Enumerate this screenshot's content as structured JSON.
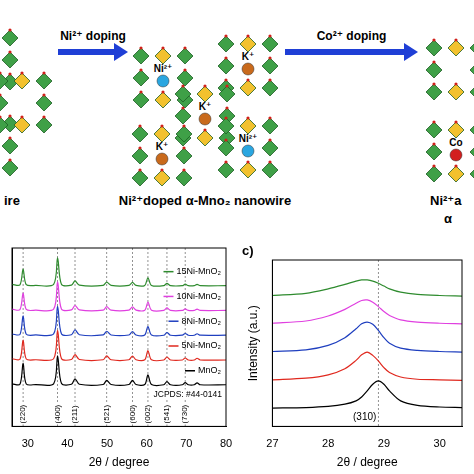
{
  "diagram": {
    "arrows": [
      {
        "label": "Ni²⁺ doping"
      },
      {
        "label": "Co²⁺ doping"
      }
    ],
    "structures": [
      {
        "caption": [
          "ire"
        ],
        "ions": []
      },
      {
        "caption": [
          "Ni²⁺doped α-Mno₂ nanowire"
        ],
        "ions": [
          {
            "label": "Ni²⁺",
            "color": "#2aa6e0"
          },
          {
            "label": "K⁺",
            "color": "#c96a1c"
          },
          {
            "label": "K⁺",
            "color": "#c96a1c"
          },
          {
            "label": "K⁺",
            "color": "#c96a1c"
          },
          {
            "label": "Ni²⁺",
            "color": "#2aa6e0"
          }
        ]
      },
      {
        "caption": [
          "Ni²⁺a",
          "α"
        ],
        "ions": [
          {
            "label": "Co",
            "color": "#d21f1f"
          }
        ]
      }
    ]
  },
  "chart_data": [
    {
      "type": "line",
      "x_label": "2θ / degree",
      "x": [
        26,
        28,
        28.8,
        29.6,
        32,
        36.5,
        37.5,
        38.5,
        41,
        41.9,
        43,
        49,
        49.9,
        51,
        55.5,
        56.4,
        57.3,
        59.5,
        60.3,
        61.2,
        64.3,
        65.1,
        66,
        69,
        69.7,
        70.5,
        72,
        72.7,
        73.5,
        80
      ],
      "xlim": [
        26,
        80
      ],
      "xticks": [
        30,
        40,
        50,
        60,
        70,
        80
      ],
      "ylim": [
        -16,
        56
      ],
      "tick_labels": "x",
      "grid": false,
      "legend": "right",
      "series": [
        {
          "name": "15Ni-MnO₂",
          "color": "#2e8b2e",
          "values": [
            41.3,
            41.1,
            47.5,
            41.2,
            40.9,
            41.3,
            52.0,
            41.3,
            41.0,
            42.7,
            41.0,
            40.9,
            42.2,
            40.9,
            40.9,
            42.1,
            40.9,
            40.9,
            44.0,
            40.9,
            40.8,
            41.7,
            40.8,
            40.8,
            41.4,
            40.8,
            40.8,
            41.3,
            40.8,
            40.8
          ]
        },
        {
          "name": "10Ni-MnO₂",
          "color": "#e040e0",
          "values": [
            31.3,
            31.1,
            37.8,
            31.2,
            30.9,
            31.3,
            42.3,
            31.3,
            31.0,
            32.8,
            31.0,
            30.9,
            32.3,
            30.9,
            30.9,
            32.2,
            30.9,
            30.9,
            34.2,
            30.9,
            30.8,
            31.8,
            30.8,
            30.8,
            31.4,
            30.8,
            30.8,
            31.3,
            30.8,
            30.8
          ]
        },
        {
          "name": "8Ni-MnO₂",
          "color": "#1f3fbf",
          "values": [
            21.3,
            21.1,
            28.6,
            21.2,
            20.9,
            21.3,
            32.5,
            21.3,
            21.0,
            23.0,
            21.0,
            20.9,
            22.4,
            20.9,
            20.9,
            22.3,
            20.9,
            20.9,
            24.4,
            20.9,
            20.8,
            21.9,
            20.8,
            20.8,
            21.5,
            20.8,
            20.8,
            21.4,
            20.8,
            20.8
          ]
        },
        {
          "name": "5Ni-MnO₂",
          "color": "#e0281e",
          "values": [
            11.3,
            11.1,
            18.8,
            11.2,
            10.9,
            11.3,
            22.8,
            11.3,
            11.0,
            13.0,
            11.0,
            10.9,
            12.5,
            10.9,
            10.9,
            12.4,
            10.9,
            10.9,
            14.6,
            10.9,
            10.8,
            12.0,
            10.8,
            10.8,
            11.6,
            10.8,
            10.8,
            11.5,
            10.8,
            10.8
          ]
        },
        {
          "name": "MnO₂",
          "color": "#000000",
          "values": [
            1.2,
            1.0,
            9.5,
            1.1,
            0.9,
            1.2,
            12.5,
            1.3,
            1.0,
            3.2,
            1.0,
            0.9,
            2.6,
            0.9,
            0.9,
            2.6,
            0.9,
            0.9,
            4.8,
            0.9,
            0.8,
            2.1,
            0.8,
            0.8,
            1.7,
            0.8,
            0.8,
            1.6,
            0.8,
            0.8
          ]
        }
      ],
      "reference": {
        "name": "JCPDS: #44-0141",
        "peaks": [
          {
            "x": 28.8,
            "label": "(220)"
          },
          {
            "x": 37.5,
            "label": "(400)"
          },
          {
            "x": 41.9,
            "label": "(211)"
          },
          {
            "x": 49.9,
            "label": "(521)"
          },
          {
            "x": 56.4,
            "label": "(600)"
          },
          {
            "x": 60.3,
            "label": "(002)"
          },
          {
            "x": 65.1,
            "label": "(541)"
          },
          {
            "x": 69.7,
            "label": "(730)"
          }
        ]
      }
    },
    {
      "type": "line",
      "panel": "c)",
      "x_label": "2θ / degree",
      "y_label": "Intensity (a.u.)",
      "x": [
        27,
        27.6,
        28.0,
        28.3,
        28.5,
        28.6,
        28.7,
        28.8,
        28.9,
        29.0,
        29.1,
        29.3,
        29.6,
        30.0,
        30.4
      ],
      "xlim": [
        27,
        30.4
      ],
      "xticks": [
        27,
        28,
        29,
        30
      ],
      "ylim": [
        -3,
        27
      ],
      "tick_labels": "x",
      "grid": false,
      "series": [
        {
          "color": "#2e8b2e",
          "values": [
            20.6,
            21.0,
            21.8,
            22.6,
            23.2,
            23.4,
            23.4,
            23.2,
            22.8,
            22.3,
            21.8,
            21.2,
            20.8,
            20.6,
            20.5
          ]
        },
        {
          "color": "#e040e0",
          "values": [
            15.6,
            16.0,
            16.9,
            18.1,
            19.2,
            19.7,
            19.8,
            19.4,
            18.6,
            17.7,
            17.0,
            16.2,
            15.8,
            15.6,
            15.5
          ]
        },
        {
          "color": "#1f3fbf",
          "values": [
            10.5,
            10.8,
            11.6,
            13.0,
            14.6,
            15.5,
            15.8,
            15.4,
            14.3,
            13.0,
            12.0,
            11.1,
            10.7,
            10.5,
            10.4
          ]
        },
        {
          "color": "#e0281e",
          "values": [
            5.4,
            5.7,
            6.3,
            7.4,
            8.9,
            9.9,
            10.4,
            9.8,
            8.8,
            7.6,
            6.7,
            5.9,
            5.5,
            5.4,
            5.3
          ]
        },
        {
          "color": "#000000",
          "values": [
            0.3,
            0.4,
            0.6,
            1.0,
            1.6,
            2.3,
            3.4,
            4.6,
            5.2,
            4.6,
            3.4,
            1.6,
            0.8,
            0.5,
            0.4
          ]
        }
      ],
      "reference": {
        "peaks": [
          {
            "x": 28.9,
            "label": "(310)"
          }
        ]
      }
    }
  ]
}
